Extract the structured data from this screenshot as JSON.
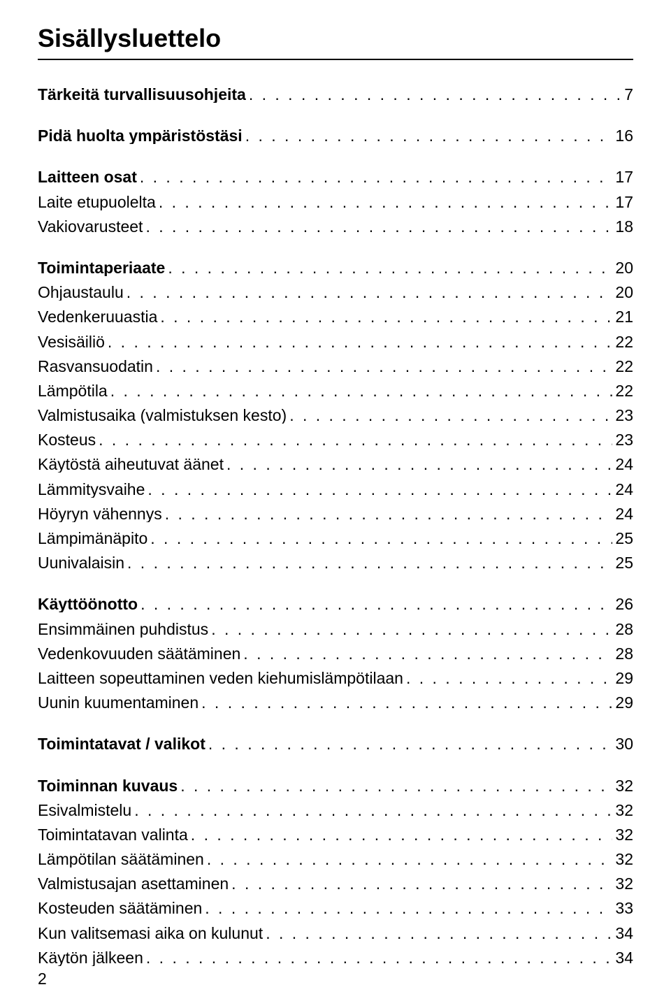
{
  "title": "Sisällysluettelo",
  "page_number": "2",
  "fonts": {
    "title_size_pt": 36,
    "body_size_pt": 23,
    "family": "Helvetica/Arial"
  },
  "colors": {
    "text": "#000000",
    "background": "#ffffff",
    "rule": "#000000"
  },
  "toc": [
    {
      "type": "section",
      "label": "Tärkeitä turvallisuusohjeita",
      "page": "7"
    },
    {
      "type": "gap"
    },
    {
      "type": "section",
      "label": "Pidä huolta ympäristöstäsi",
      "page": "16"
    },
    {
      "type": "gap"
    },
    {
      "type": "section",
      "label": "Laitteen osat",
      "page": "17"
    },
    {
      "type": "item",
      "label": "Laite etupuolelta",
      "page": "17"
    },
    {
      "type": "item",
      "label": "Vakiovarusteet",
      "page": "18"
    },
    {
      "type": "gap"
    },
    {
      "type": "section",
      "label": "Toimintaperiaate",
      "page": "20"
    },
    {
      "type": "item",
      "label": "Ohjaustaulu",
      "page": "20"
    },
    {
      "type": "item",
      "label": "Vedenkeruuastia",
      "page": "21"
    },
    {
      "type": "item",
      "label": "Vesisäiliö",
      "page": "22"
    },
    {
      "type": "item",
      "label": "Rasvansuodatin",
      "page": "22"
    },
    {
      "type": "item",
      "label": "Lämpötila",
      "page": "22"
    },
    {
      "type": "item",
      "label": "Valmistusaika (valmistuksen kesto)",
      "page": "23"
    },
    {
      "type": "item",
      "label": "Kosteus",
      "page": "23"
    },
    {
      "type": "item",
      "label": "Käytöstä aiheutuvat äänet",
      "page": "24"
    },
    {
      "type": "item",
      "label": "Lämmitysvaihe",
      "page": "24"
    },
    {
      "type": "item",
      "label": "Höyryn vähennys",
      "page": "24"
    },
    {
      "type": "item",
      "label": "Lämpimänäpito",
      "page": "25"
    },
    {
      "type": "item",
      "label": "Uunivalaisin",
      "page": "25"
    },
    {
      "type": "gap"
    },
    {
      "type": "section",
      "label": "Käyttöönotto",
      "page": "26"
    },
    {
      "type": "item",
      "label": "Ensimmäinen puhdistus",
      "page": "28"
    },
    {
      "type": "item",
      "label": "Vedenkovuuden säätäminen",
      "page": "28"
    },
    {
      "type": "item",
      "label": "Laitteen sopeuttaminen veden kiehumislämpötilaan",
      "page": "29"
    },
    {
      "type": "item",
      "label": "Uunin kuumentaminen",
      "page": "29"
    },
    {
      "type": "gap"
    },
    {
      "type": "section",
      "label": "Toimintatavat / valikot",
      "page": "30"
    },
    {
      "type": "gap"
    },
    {
      "type": "section",
      "label": "Toiminnan kuvaus",
      "page": "32"
    },
    {
      "type": "item",
      "label": "Esivalmistelu",
      "page": "32"
    },
    {
      "type": "item",
      "label": "Toimintatavan valinta",
      "page": "32"
    },
    {
      "type": "item",
      "label": "Lämpötilan säätäminen",
      "page": "32"
    },
    {
      "type": "item",
      "label": "Valmistusajan asettaminen",
      "page": "32"
    },
    {
      "type": "item",
      "label": "Kosteuden säätäminen",
      "page": "33"
    },
    {
      "type": "item",
      "label": "Kun valitsemasi aika on kulunut",
      "page": "34"
    },
    {
      "type": "item",
      "label": "Käytön jälkeen",
      "page": "34"
    }
  ]
}
